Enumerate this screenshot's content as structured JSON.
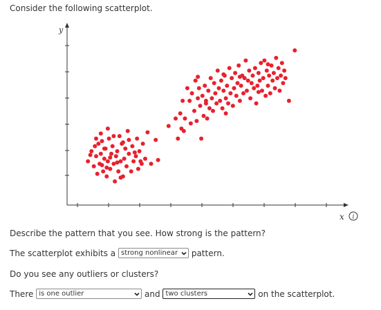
{
  "question": {
    "intro": "Consider the following scatterplot.",
    "describe_prompt": "Describe the pattern that you see. How strong is the pattern?",
    "exhibits_prefix": "The scatterplot exhibits a",
    "exhibits_suffix": "pattern.",
    "outliers_prompt": "Do you see any outliers or clusters?",
    "there_prefix": "There",
    "and_word": "and",
    "there_suffix": "on the scatterplot."
  },
  "dropdowns": {
    "pattern_selected": "strong nonlinear",
    "outlier_selected": "is one outlier",
    "cluster_selected": "two clusters"
  },
  "info_icon": "info-circle-icon",
  "colors": {
    "point": "#e8212f",
    "axis": "#333333"
  },
  "chart_data": {
    "type": "scatter",
    "title": "",
    "xlabel": "x",
    "ylabel": "y",
    "xlim": [
      0,
      10
    ],
    "ylim": [
      0,
      6
    ],
    "grid": false,
    "series": [
      {
        "color": "#e8212f",
        "points": [
          [
            0.45,
            1.6
          ],
          [
            0.6,
            2.0
          ],
          [
            0.7,
            1.4
          ],
          [
            0.75,
            2.2
          ],
          [
            0.8,
            1.8
          ],
          [
            0.85,
            1.1
          ],
          [
            0.9,
            2.3
          ],
          [
            0.95,
            1.5
          ],
          [
            1.0,
            1.9
          ],
          [
            1.05,
            2.4
          ],
          [
            1.1,
            1.2
          ],
          [
            1.15,
            1.7
          ],
          [
            1.2,
            2.1
          ],
          [
            1.25,
            1.0
          ],
          [
            1.3,
            1.6
          ],
          [
            1.35,
            2.5
          ],
          [
            1.4,
            1.3
          ],
          [
            1.45,
            1.9
          ],
          [
            1.5,
            2.2
          ],
          [
            1.55,
            1.5
          ],
          [
            1.6,
            0.8
          ],
          [
            1.65,
            1.8
          ],
          [
            1.7,
            2.0
          ],
          [
            1.75,
            1.2
          ],
          [
            1.8,
            2.6
          ],
          [
            1.85,
            1.6
          ],
          [
            1.9,
            2.3
          ],
          [
            1.95,
            1.0
          ],
          [
            2.0,
            1.7
          ],
          [
            2.05,
            2.1
          ],
          [
            2.1,
            1.4
          ],
          [
            2.15,
            2.8
          ],
          [
            2.2,
            1.9
          ],
          [
            2.3,
            1.2
          ],
          [
            2.35,
            2.2
          ],
          [
            2.4,
            1.6
          ],
          [
            2.5,
            1.8
          ],
          [
            2.55,
            2.5
          ],
          [
            2.6,
            1.3
          ],
          [
            2.65,
            2.0
          ],
          [
            2.75,
            1.5
          ],
          [
            2.8,
            2.3
          ],
          [
            2.9,
            1.7
          ],
          [
            1.0,
            2.7
          ],
          [
            1.3,
            2.9
          ],
          [
            1.55,
            2.6
          ],
          [
            1.05,
            1.45
          ],
          [
            0.8,
            2.5
          ],
          [
            1.7,
            1.55
          ],
          [
            2.2,
            2.45
          ],
          [
            1.15,
            2.1
          ],
          [
            1.95,
            2.35
          ],
          [
            2.45,
            1.95
          ],
          [
            1.4,
            1.75
          ],
          [
            0.55,
            1.85
          ],
          [
            2.7,
            1.6
          ],
          [
            1.25,
            1.35
          ],
          [
            1.85,
            0.95
          ],
          [
            3.0,
            2.75
          ],
          [
            3.15,
            1.5
          ],
          [
            3.35,
            2.45
          ],
          [
            3.45,
            1.65
          ],
          [
            3.9,
            3.0
          ],
          [
            4.3,
            2.5
          ],
          [
            4.2,
            3.3
          ],
          [
            4.5,
            4.0
          ],
          [
            4.4,
            3.5
          ],
          [
            4.55,
            2.8
          ],
          [
            4.6,
            3.3
          ],
          [
            4.7,
            4.5
          ],
          [
            4.8,
            4.0
          ],
          [
            4.85,
            3.1
          ],
          [
            4.9,
            4.3
          ],
          [
            5.0,
            3.6
          ],
          [
            5.05,
            4.8
          ],
          [
            5.1,
            3.2
          ],
          [
            5.15,
            4.1
          ],
          [
            5.2,
            4.5
          ],
          [
            5.25,
            3.8
          ],
          [
            5.3,
            2.5
          ],
          [
            5.35,
            4.2
          ],
          [
            5.4,
            3.4
          ],
          [
            5.45,
            4.6
          ],
          [
            5.5,
            3.9
          ],
          [
            5.55,
            3.3
          ],
          [
            5.6,
            4.4
          ],
          [
            5.65,
            3.7
          ],
          [
            5.7,
            4.9
          ],
          [
            5.75,
            4.1
          ],
          [
            5.8,
            3.6
          ],
          [
            5.85,
            4.7
          ],
          [
            5.9,
            4.3
          ],
          [
            5.95,
            3.9
          ],
          [
            6.0,
            5.2
          ],
          [
            6.05,
            4.5
          ],
          [
            6.1,
            4.0
          ],
          [
            6.15,
            4.8
          ],
          [
            6.2,
            3.7
          ],
          [
            6.25,
            4.4
          ],
          [
            6.3,
            5.0
          ],
          [
            6.35,
            4.1
          ],
          [
            6.4,
            4.6
          ],
          [
            6.45,
            3.9
          ],
          [
            6.5,
            5.3
          ],
          [
            6.55,
            4.3
          ],
          [
            6.6,
            4.9
          ],
          [
            6.65,
            3.8
          ],
          [
            6.7,
            4.5
          ],
          [
            6.75,
            5.1
          ],
          [
            6.8,
            4.2
          ],
          [
            6.85,
            4.7
          ],
          [
            6.9,
            5.4
          ],
          [
            6.95,
            4.0
          ],
          [
            7.0,
            4.6
          ],
          [
            7.05,
            5.0
          ],
          [
            7.1,
            4.3
          ],
          [
            7.15,
            4.9
          ],
          [
            7.2,
            5.6
          ],
          [
            7.25,
            4.4
          ],
          [
            7.3,
            4.8
          ],
          [
            7.35,
            5.2
          ],
          [
            7.4,
            4.1
          ],
          [
            7.45,
            4.7
          ],
          [
            7.5,
            5.0
          ],
          [
            7.55,
            4.5
          ],
          [
            7.6,
            5.3
          ],
          [
            7.65,
            3.9
          ],
          [
            7.7,
            4.6
          ],
          [
            7.75,
            5.1
          ],
          [
            7.8,
            4.8
          ],
          [
            7.85,
            5.5
          ],
          [
            7.9,
            4.4
          ],
          [
            7.95,
            4.9
          ],
          [
            8.0,
            5.6
          ],
          [
            8.05,
            4.2
          ],
          [
            8.1,
            5.2
          ],
          [
            8.15,
            4.6
          ],
          [
            8.2,
            5.0
          ],
          [
            8.25,
            4.3
          ],
          [
            8.3,
            5.4
          ],
          [
            8.35,
            4.8
          ],
          [
            8.4,
            5.1
          ],
          [
            8.45,
            4.5
          ],
          [
            8.5,
            5.7
          ],
          [
            8.55,
            4.9
          ],
          [
            8.6,
            5.3
          ],
          [
            8.65,
            4.4
          ],
          [
            8.7,
            5.0
          ],
          [
            8.75,
            5.5
          ],
          [
            8.8,
            4.7
          ],
          [
            8.85,
            5.2
          ],
          [
            8.9,
            4.9
          ],
          [
            9.05,
            4.0
          ],
          [
            9.3,
            6.0
          ],
          [
            6.35,
            3.5
          ],
          [
            5.5,
            4.0
          ],
          [
            6.95,
            4.95
          ],
          [
            7.75,
            4.35
          ],
          [
            8.15,
            5.45
          ],
          [
            6.25,
            5.05
          ],
          [
            5.15,
            4.95
          ],
          [
            4.45,
            2.9
          ]
        ]
      }
    ]
  }
}
